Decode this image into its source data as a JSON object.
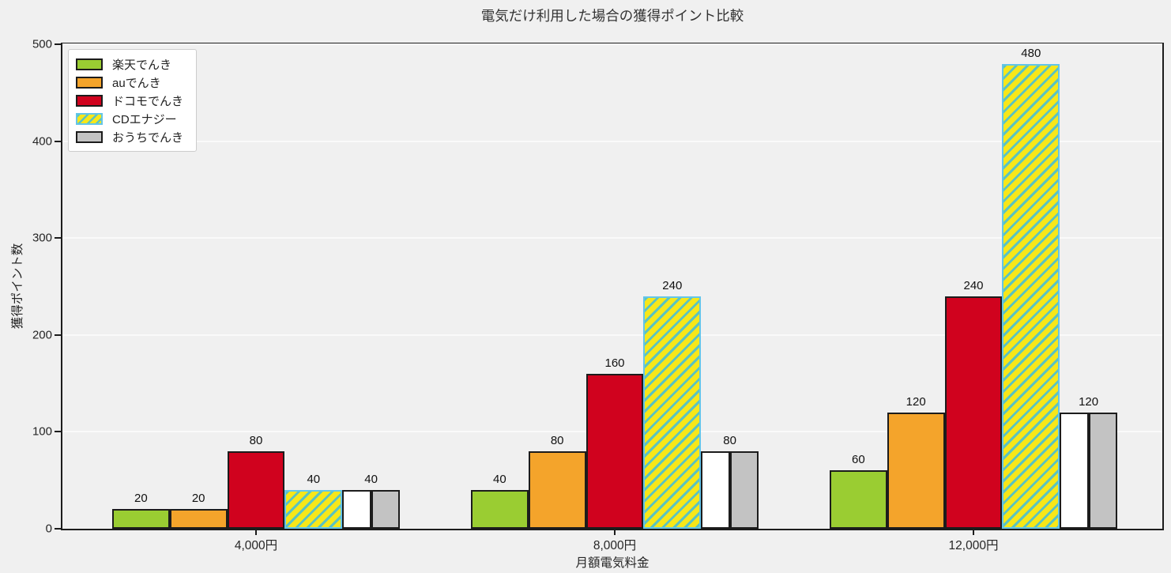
{
  "chart_data": {
    "type": "bar",
    "title": "電気だけ利用した場合の獲得ポイント比較",
    "xlabel": "月額電気料金",
    "ylabel": "獲得ポイント数",
    "categories": [
      "4,000円",
      "8,000円",
      "12,000円"
    ],
    "series": [
      {
        "name": "楽天でんき",
        "fill": "#9ACD32",
        "edge": "#1C1C1C",
        "values": [
          20,
          40,
          60
        ]
      },
      {
        "name": "auでんき",
        "fill": "#F4A42B",
        "edge": "#1C1C1C",
        "values": [
          20,
          80,
          120
        ]
      },
      {
        "name": "ドコモでんき",
        "fill": "#D0021E",
        "edge": "#1C1C1C",
        "values": [
          80,
          160,
          240
        ]
      },
      {
        "name": "CDエナジー",
        "fill": "#F7E719",
        "edge": "#63C5E8",
        "hatch": "//",
        "hatch_color": "#5BC3C0",
        "values": [
          40,
          240,
          480
        ]
      },
      {
        "name": "おうちでんき",
        "fill": "#C3C3C3",
        "edge": "#1C1C1C",
        "split": true,
        "split_fills": [
          "#FFFFFF",
          "#C3C3C3"
        ],
        "values": [
          40,
          80,
          120
        ]
      }
    ],
    "bar_value_labels": {
      "4,000円": [
        20,
        20,
        80,
        40,
        40
      ],
      "8,000円": [
        40,
        80,
        160,
        240,
        80
      ],
      "12,000円": [
        60,
        120,
        240,
        480,
        120
      ]
    },
    "yticks": [
      0,
      100,
      200,
      300,
      400,
      500
    ],
    "ylim": [
      0,
      500
    ],
    "grid": true,
    "grid_color": "#FAFAFA",
    "background_color": "#F0F0F0",
    "spine_color": "#1C1C1C",
    "text_color": "#262626",
    "legend_position": "upper left"
  }
}
